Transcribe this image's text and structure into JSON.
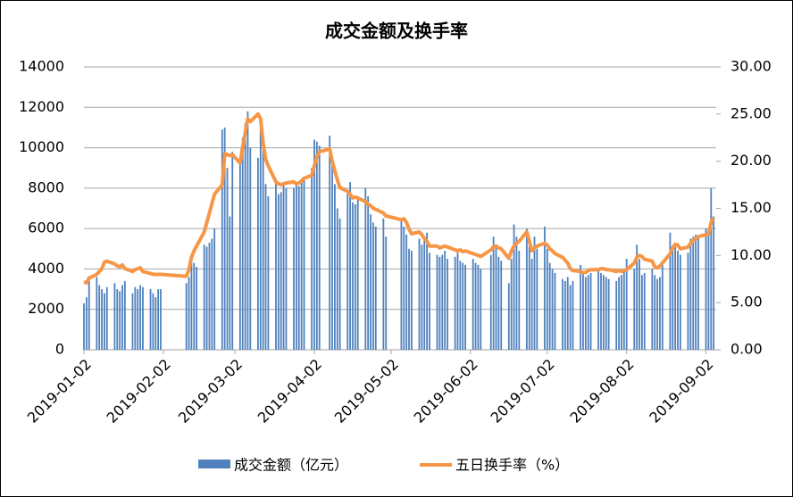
{
  "chart_data": {
    "type": "bar-line",
    "title": "成交金额及换手率",
    "x": [
      "2019-01-02",
      "2019-01-03",
      "2019-01-04",
      "2019-01-07",
      "2019-01-08",
      "2019-01-09",
      "2019-01-10",
      "2019-01-11",
      "2019-01-14",
      "2019-01-15",
      "2019-01-16",
      "2019-01-17",
      "2019-01-18",
      "2019-01-21",
      "2019-01-22",
      "2019-01-23",
      "2019-01-24",
      "2019-01-25",
      "2019-01-28",
      "2019-01-29",
      "2019-01-30",
      "2019-01-31",
      "2019-02-01",
      "2019-02-11",
      "2019-02-12",
      "2019-02-13",
      "2019-02-14",
      "2019-02-15",
      "2019-02-18",
      "2019-02-19",
      "2019-02-20",
      "2019-02-21",
      "2019-02-22",
      "2019-02-25",
      "2019-02-26",
      "2019-02-27",
      "2019-02-28",
      "2019-03-01",
      "2019-03-04",
      "2019-03-05",
      "2019-03-06",
      "2019-03-07",
      "2019-03-08",
      "2019-03-11",
      "2019-03-12",
      "2019-03-13",
      "2019-03-14",
      "2019-03-15",
      "2019-03-18",
      "2019-03-19",
      "2019-03-20",
      "2019-03-21",
      "2019-03-22",
      "2019-03-25",
      "2019-03-26",
      "2019-03-27",
      "2019-03-28",
      "2019-03-29",
      "2019-04-01",
      "2019-04-02",
      "2019-04-03",
      "2019-04-04",
      "2019-04-08",
      "2019-04-09",
      "2019-04-10",
      "2019-04-11",
      "2019-04-12",
      "2019-04-15",
      "2019-04-16",
      "2019-04-17",
      "2019-04-18",
      "2019-04-19",
      "2019-04-22",
      "2019-04-23",
      "2019-04-24",
      "2019-04-25",
      "2019-04-26",
      "2019-04-29",
      "2019-04-30",
      "2019-05-06",
      "2019-05-07",
      "2019-05-08",
      "2019-05-09",
      "2019-05-10",
      "2019-05-13",
      "2019-05-14",
      "2019-05-15",
      "2019-05-16",
      "2019-05-17",
      "2019-05-20",
      "2019-05-21",
      "2019-05-22",
      "2019-05-23",
      "2019-05-24",
      "2019-05-27",
      "2019-05-28",
      "2019-05-29",
      "2019-05-30",
      "2019-05-31",
      "2019-06-03",
      "2019-06-04",
      "2019-06-05",
      "2019-06-06",
      "2019-06-10",
      "2019-06-11",
      "2019-06-12",
      "2019-06-13",
      "2019-06-14",
      "2019-06-17",
      "2019-06-18",
      "2019-06-19",
      "2019-06-20",
      "2019-06-21",
      "2019-06-24",
      "2019-06-25",
      "2019-06-26",
      "2019-06-27",
      "2019-06-28",
      "2019-07-01",
      "2019-07-02",
      "2019-07-03",
      "2019-07-04",
      "2019-07-05",
      "2019-07-08",
      "2019-07-09",
      "2019-07-10",
      "2019-07-11",
      "2019-07-12",
      "2019-07-15",
      "2019-07-16",
      "2019-07-17",
      "2019-07-18",
      "2019-07-19",
      "2019-07-22",
      "2019-07-23",
      "2019-07-24",
      "2019-07-25",
      "2019-07-26",
      "2019-07-29",
      "2019-07-30",
      "2019-07-31",
      "2019-08-01",
      "2019-08-02",
      "2019-08-05",
      "2019-08-06",
      "2019-08-07",
      "2019-08-08",
      "2019-08-09",
      "2019-08-12",
      "2019-08-13",
      "2019-08-14",
      "2019-08-15",
      "2019-08-16",
      "2019-08-19",
      "2019-08-20",
      "2019-08-21",
      "2019-08-22",
      "2019-08-23",
      "2019-08-26",
      "2019-08-27",
      "2019-08-28",
      "2019-08-29",
      "2019-08-30",
      "2019-09-02",
      "2019-09-03",
      "2019-09-04",
      "2019-09-05"
    ],
    "series": [
      {
        "name": "成交金额（亿元）",
        "kind": "bar",
        "color": "#4f81bd",
        "values": [
          2300,
          2600,
          3400,
          3600,
          3200,
          3000,
          2800,
          3100,
          3300,
          3000,
          2900,
          3200,
          3400,
          2800,
          3100,
          3000,
          3200,
          3100,
          3000,
          2800,
          2600,
          3000,
          3000,
          3300,
          3600,
          4600,
          4300,
          4100,
          5200,
          5100,
          5300,
          5500,
          6000,
          10900,
          11000,
          9000,
          6600,
          9800,
          9500,
          10500,
          11200,
          11800,
          10000,
          9500,
          11000,
          10600,
          8200,
          7600,
          8300,
          7700,
          7800,
          8300,
          8000,
          8000,
          8200,
          8100,
          8300,
          8400,
          9000,
          10400,
          10300,
          10100,
          10600,
          9300,
          8200,
          7000,
          6500,
          7800,
          8300,
          7300,
          7200,
          7600,
          8000,
          7600,
          6700,
          6300,
          6100,
          6500,
          5600,
          6400,
          6100,
          5700,
          5000,
          4900,
          5500,
          5200,
          5600,
          5800,
          4800,
          4700,
          4600,
          4700,
          4900,
          4500,
          4600,
          4800,
          4400,
          4300,
          4200,
          4500,
          4300,
          4200,
          4000,
          4700,
          5600,
          5100,
          4600,
          4400,
          3300,
          4500,
          6200,
          5600,
          4900,
          6000,
          5100,
          4500,
          5600,
          5000,
          6100,
          5000,
          4300,
          4000,
          3800,
          3500,
          3400,
          3600,
          3200,
          3400,
          4200,
          3900,
          3600,
          3700,
          3800,
          4000,
          3800,
          3700,
          3600,
          3500,
          3400,
          3600,
          3700,
          3900,
          4500,
          4000,
          5200,
          4500,
          3700,
          3800,
          4000,
          3700,
          3500,
          3600,
          4200,
          5800,
          5000,
          5300,
          4900,
          4700,
          4800,
          5500,
          5600,
          5700,
          5600,
          6000,
          5800,
          8000,
          6600
        ]
      },
      {
        "name": "五日换手率（%）",
        "kind": "line",
        "axis": "y2",
        "color": "#f79646",
        "values": [
          7.2,
          7.1,
          7.6,
          8.0,
          8.3,
          8.6,
          9.3,
          9.4,
          9.1,
          8.9,
          8.8,
          9.0,
          8.6,
          8.3,
          8.5,
          8.6,
          8.7,
          8.3,
          8.1,
          8.0,
          8.0,
          8.0,
          8.0,
          7.8,
          8.5,
          9.8,
          10.5,
          11,
          12.5,
          13.5,
          14.5,
          15.5,
          16.5,
          17.5,
          20.8,
          20.7,
          20.6,
          20.7,
          19.8,
          21.5,
          23,
          24.5,
          24.2,
          25,
          24.5,
          22,
          20.2,
          19.5,
          17.8,
          17.6,
          17.5,
          17.6,
          17.7,
          17.8,
          17.6,
          17.7,
          17.9,
          18.2,
          18.5,
          19.5,
          20.5,
          21,
          21.3,
          20,
          19,
          18,
          17.2,
          16.8,
          16.5,
          16.1,
          16.2,
          16.1,
          15.7,
          15.4,
          15.3,
          15,
          14.9,
          14.5,
          14.2,
          13.8,
          13.9,
          13.5,
          12.8,
          12.3,
          12.5,
          12.2,
          11.8,
          11.5,
          11,
          11,
          10.8,
          10.9,
          11,
          10.9,
          10.6,
          10.5,
          10.6,
          10.4,
          10.5,
          10.2,
          10.1,
          10,
          9.9,
          10.6,
          10.9,
          11,
          10.8,
          10.7,
          9.7,
          10.5,
          11,
          11.3,
          11.5,
          12.5,
          11.5,
          10.5,
          10.8,
          11,
          11.3,
          11.1,
          10.7,
          10.5,
          10.2,
          9.8,
          9.5,
          9.2,
          8.6,
          8.4,
          8.3,
          8.2,
          8.2,
          8.4,
          8.5,
          8.5,
          8.6,
          8.6,
          8.5,
          8.5,
          8.3,
          8.4,
          8.3,
          8.4,
          8.5,
          9.2,
          9.8,
          10,
          9.9,
          9.6,
          9.4,
          8.8,
          8.7,
          8.9,
          9.2,
          10.2,
          10.8,
          11.2,
          11.1,
          10.7,
          10.9,
          11.3,
          11.6,
          11.8,
          12,
          12.2,
          12.3,
          13.5,
          14
        ]
      }
    ],
    "xlim": [
      "2019-01-02",
      "2019-09-06"
    ],
    "xticks": [
      "2019-01-02",
      "2019-02-02",
      "2019-03-02",
      "2019-04-02",
      "2019-05-02",
      "2019-06-02",
      "2019-07-02",
      "2019-08-02",
      "2019-09-02"
    ],
    "ylim": [
      0,
      14000
    ],
    "yticks": [
      0,
      2000,
      4000,
      6000,
      8000,
      10000,
      12000,
      14000
    ],
    "y2lim": [
      0,
      30
    ],
    "y2ticks": [
      {
        "value": 0,
        "label": "0.00"
      },
      {
        "value": 5,
        "label": "5.00"
      },
      {
        "value": 10,
        "label": "10.00"
      },
      {
        "value": 15,
        "label": "15.00"
      },
      {
        "value": 20,
        "label": "20.00"
      },
      {
        "value": 25,
        "label": "25.00"
      },
      {
        "value": 30,
        "label": "30.00"
      }
    ],
    "grid": true,
    "legend": "bottom"
  }
}
